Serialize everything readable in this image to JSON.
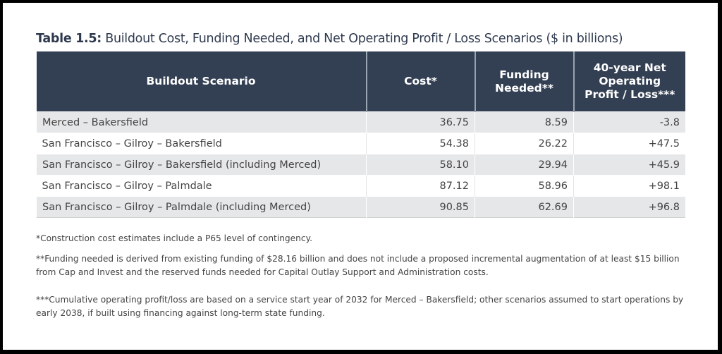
{
  "title": {
    "prefix": "Table 1.5:",
    "text": " Buildout Cost, Funding Needed, and Net Operating Profit / Loss Scenarios ($ in billions)"
  },
  "table": {
    "headers": [
      "Buildout Scenario",
      "Cost*",
      "Funding Needed**",
      "40-year Net Operating Profit / Loss***"
    ],
    "rows": [
      [
        "Merced – Bakersfield",
        "36.75",
        "8.59",
        "-3.8"
      ],
      [
        "San Francisco – Gilroy – Bakersfield",
        "54.38",
        "26.22",
        "+47.5"
      ],
      [
        "San Francisco – Gilroy – Bakersfield (including Merced)",
        "58.10",
        "29.94",
        "+45.9"
      ],
      [
        "San Francisco – Gilroy – Palmdale",
        "87.12",
        "58.96",
        "+98.1"
      ],
      [
        "San Francisco – Gilroy – Palmdale (including Merced)",
        "90.85",
        "62.69",
        "+96.8"
      ]
    ]
  },
  "footnotes": [
    "*Construction cost estimates include a P65 level of contingency.",
    "**Funding needed is derived from existing funding of $28.16 billion and does not include a proposed incremental augmentation of at least $15 billion from Cap and Invest and the reserved funds needed for Capital Outlay Support and Administration costs.",
    "***Cumulative operating profit/loss are based on a service start year of 2032 for Merced – Bakersfield; other scenarios assumed to start operations by early 2038, if built using financing against long-term state funding."
  ],
  "colors": {
    "header_bg": "#333f53",
    "stripe": "#e6e7e9",
    "title": "#2f3a4f"
  }
}
